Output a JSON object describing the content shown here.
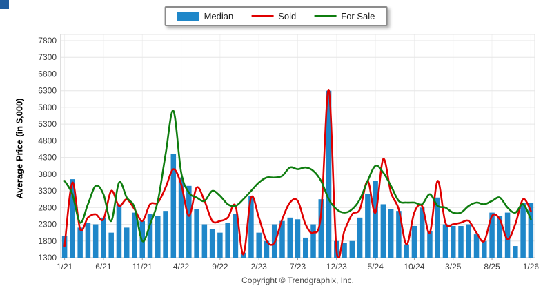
{
  "page": {
    "corner_square_color": "#1f5c9e",
    "background": "#ffffff",
    "copyright": "Copyright © Trendgraphix, Inc."
  },
  "legend": {
    "position": "top-center",
    "items": [
      {
        "label": "Median",
        "type": "box",
        "color": "#1f87c9"
      },
      {
        "label": "Sold",
        "type": "line",
        "color": "#e00000"
      },
      {
        "label": "For Sale",
        "type": "line",
        "color": "#0f7d0f"
      }
    ]
  },
  "chart_data": {
    "type": "combo-bar-line",
    "title": "",
    "xlabel": "",
    "ylabel": "Average Price (in $,000)",
    "ylim": [
      1300,
      7800
    ],
    "yticks": [
      1300,
      1800,
      2300,
      2800,
      3300,
      3800,
      4300,
      4800,
      5300,
      5800,
      6300,
      6800,
      7300,
      7800
    ],
    "grid": true,
    "xtick_every": 5,
    "xticks_shown": [
      "1/21",
      "6/21",
      "11/21",
      "4/22",
      "9/22",
      "2/23",
      "7/23",
      "12/23",
      "5/24",
      "10/24",
      "3/25",
      "8/25",
      "1/26"
    ],
    "categories": [
      "1/21",
      "2/21",
      "3/21",
      "4/21",
      "5/21",
      "6/21",
      "7/21",
      "8/21",
      "9/21",
      "10/21",
      "11/21",
      "12/21",
      "1/22",
      "2/22",
      "3/22",
      "4/22",
      "5/22",
      "6/22",
      "7/22",
      "8/22",
      "9/22",
      "10/22",
      "11/22",
      "12/22",
      "1/23",
      "2/23",
      "3/23",
      "4/23",
      "5/23",
      "6/23",
      "7/23",
      "8/23",
      "9/23",
      "10/23",
      "11/23",
      "12/23",
      "1/24",
      "2/24",
      "3/24",
      "4/24",
      "5/24",
      "6/24",
      "7/24",
      "8/24",
      "9/24",
      "10/24",
      "11/24",
      "12/24",
      "1/25",
      "2/25",
      "3/25",
      "4/25",
      "5/25",
      "6/25",
      "7/25",
      "8/25",
      "9/25",
      "10/25",
      "11/25",
      "12/25",
      "1/26"
    ],
    "series": [
      {
        "name": "Median",
        "type": "bar",
        "color": "#1f87c9",
        "values": [
          1950,
          3650,
          2200,
          2350,
          2300,
          2500,
          2050,
          2900,
          2200,
          2650,
          2400,
          2600,
          2550,
          2700,
          4400,
          3700,
          3450,
          2750,
          2300,
          2150,
          2050,
          2350,
          2600,
          1450,
          3150,
          2050,
          1800,
          2300,
          2400,
          2500,
          2450,
          1900,
          2300,
          3050,
          6300,
          1800,
          1750,
          1800,
          2500,
          3200,
          3600,
          2900,
          2750,
          2700,
          1700,
          2250,
          2800,
          2100,
          3100,
          2300,
          2250,
          2250,
          2300,
          2000,
          1800,
          2650,
          2550,
          2650,
          1650,
          2950,
          2950
        ]
      },
      {
        "name": "Sold",
        "type": "line",
        "color": "#e00000",
        "values": [
          1650,
          3550,
          2150,
          2500,
          2600,
          2450,
          3300,
          2850,
          3050,
          2750,
          2400,
          2900,
          2950,
          3400,
          3950,
          3500,
          2550,
          3400,
          3000,
          2400,
          2400,
          2500,
          2850,
          1400,
          3100,
          2500,
          1800,
          1750,
          2450,
          2950,
          3000,
          2300,
          2050,
          2600,
          6320,
          1500,
          2100,
          2600,
          2750,
          3600,
          2650,
          4250,
          3250,
          2750,
          1700,
          2650,
          2850,
          2050,
          3600,
          2350,
          2300,
          2350,
          2400,
          2050,
          1800,
          2550,
          2450,
          1850,
          2300,
          3050,
          2700
        ]
      },
      {
        "name": "For Sale",
        "type": "line",
        "color": "#0f7d0f",
        "values": [
          3600,
          3200,
          2350,
          2900,
          3450,
          3200,
          2400,
          3550,
          3100,
          2800,
          1800,
          2300,
          3000,
          4400,
          5700,
          3850,
          3250,
          3100,
          3000,
          3300,
          3150,
          2900,
          2850,
          3050,
          3300,
          3550,
          3700,
          3700,
          3750,
          4000,
          3950,
          4000,
          3900,
          3600,
          3050,
          2750,
          2650,
          2750,
          3050,
          3600,
          4050,
          3850,
          3450,
          3000,
          2950,
          2950,
          2900,
          3200,
          2850,
          2800,
          2650,
          2650,
          2850,
          2950,
          2900,
          3000,
          3100,
          2800,
          2650,
          2900,
          2450
        ]
      }
    ]
  }
}
